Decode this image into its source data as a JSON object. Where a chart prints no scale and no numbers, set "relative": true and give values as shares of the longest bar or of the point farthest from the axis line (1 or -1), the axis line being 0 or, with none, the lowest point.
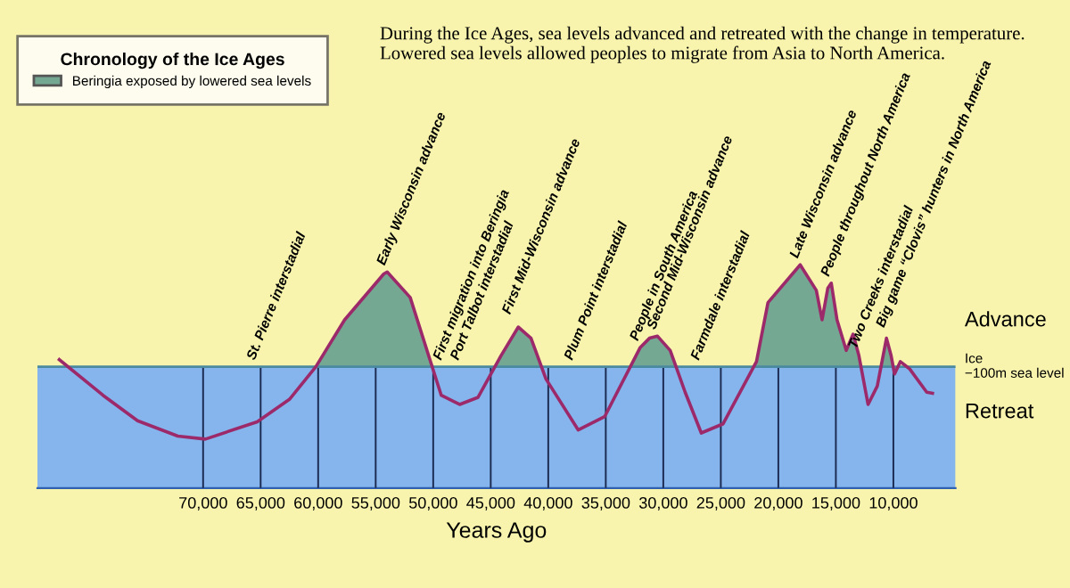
{
  "chart_data": {
    "type": "line",
    "relative": true,
    "subtitle": "During the Ice Ages, sea levels advanced and retreated with the change in temperature. Lowered sea levels allowed peoples to migrate from Asia to North America.",
    "legend_title": "Chronology of the Ice Ages",
    "legend": "top left",
    "xlabel": "Years Ago",
    "x": [
      82500,
      78700,
      75700,
      72200,
      69800,
      65300,
      62500,
      60200,
      57700,
      54300,
      54000,
      52000,
      50400,
      49300,
      47700,
      46100,
      44100,
      42600,
      41500,
      40200,
      37400,
      35100,
      32000,
      31200,
      30500,
      29400,
      28100,
      26700,
      24800,
      21900,
      20900,
      18100,
      16700,
      16200,
      15700,
      15400,
      14900,
      14100,
      13500,
      13000,
      12200,
      11400,
      10600,
      10200,
      9900,
      9400,
      8600,
      7100,
      6600
    ],
    "series": [
      {
        "type": "area",
        "name": "Beringia exposed by lowered sea levels",
        "color": "#74a893",
        "x": [
          60200,
          57700,
          54300,
          54000,
          52000,
          50400,
          50100,
          47000,
          44600,
          44100,
          42600,
          41500,
          40600,
          36000,
          32900,
          32000,
          31200,
          30500,
          29400,
          28900,
          25000,
          22100,
          21900,
          20900,
          18100,
          16700,
          16200,
          15700,
          15400,
          14900,
          14100,
          13500,
          13000,
          12800,
          12000,
          11100,
          10600,
          10200,
          10000
        ],
        "values": [
          0,
          0.46,
          0.91,
          0.93,
          0.68,
          0.11,
          0,
          null,
          0,
          0.11,
          0.39,
          0.28,
          0,
          null,
          0,
          0.19,
          0.28,
          0.3,
          0.16,
          0,
          null,
          0,
          0.05,
          0.63,
          1.0,
          0.75,
          0.46,
          0.77,
          0.82,
          0.46,
          0.16,
          0.32,
          0.11,
          0,
          null,
          0,
          0.28,
          0.11,
          0
        ]
      },
      {
        "color": "#9c2a6a",
        "values": [
          0.07,
          -0.28,
          -0.53,
          -0.68,
          -0.71,
          -0.54,
          -0.32,
          0,
          0.46,
          0.91,
          0.93,
          0.68,
          0.11,
          -0.28,
          -0.37,
          -0.3,
          0.11,
          0.39,
          0.28,
          -0.12,
          -0.62,
          -0.49,
          0.19,
          0.28,
          0.3,
          0.16,
          -0.25,
          -0.65,
          -0.56,
          0.05,
          0.63,
          1.0,
          0.75,
          0.46,
          0.77,
          0.82,
          0.46,
          0.16,
          0.32,
          0.11,
          -0.37,
          -0.19,
          0.28,
          0.11,
          -0.07,
          0.05,
          -0.02,
          -0.25,
          -0.26
        ]
      }
    ],
    "xlim": [
      84400,
      4600
    ],
    "xticks": [
      {
        "value": 70000,
        "label": "70,000"
      },
      {
        "value": 65000,
        "label": "65,000"
      },
      {
        "value": 60000,
        "label": "60,000"
      },
      {
        "value": 55000,
        "label": "55,000"
      },
      {
        "value": 50000,
        "label": "50,000"
      },
      {
        "value": 45000,
        "label": "45,000"
      },
      {
        "value": 40000,
        "label": "40,000"
      },
      {
        "value": 35000,
        "label": "35,000"
      },
      {
        "value": 30000,
        "label": "30,000"
      },
      {
        "value": 25000,
        "label": "25,000"
      },
      {
        "value": 20000,
        "label": "20,000"
      },
      {
        "value": 15000,
        "label": "15,000"
      },
      {
        "value": 10000,
        "label": "10,000"
      }
    ],
    "grid": "x",
    "tick_labels": "x",
    "bands": [
      {
        "axis": "y",
        "from": -1.19,
        "to": 0,
        "color": "#86b4ec"
      }
    ],
    "ref_lines": [
      {
        "axis": "y",
        "value": 0,
        "label": "Ice\n−100m sea level",
        "color": "#4a8aa0"
      }
    ],
    "annotations": [
      "Advance",
      "Retreat",
      {
        "text": "St. Pierre interstadial",
        "x": 65300,
        "y": 0
      },
      {
        "text": "Early Wisconsin advance",
        "x": 54000,
        "y": 0.93
      },
      {
        "text": "First migration into Beringia",
        "x": 49100,
        "y": 0
      },
      {
        "text": "Port Talbot interstadial",
        "x": 47600,
        "y": 0
      },
      {
        "text": "First Mid-Wisconsin advance",
        "x": 43100,
        "y": 0.45
      },
      {
        "text": "Plum Point interstadial",
        "x": 37700,
        "y": 0
      },
      {
        "text": "People in South America",
        "x": 32000,
        "y": 0.19
      },
      {
        "text": "Second Mid-Wisconsin advance",
        "x": 30500,
        "y": 0.3
      },
      {
        "text": "Farmdale interstadial",
        "x": 26700,
        "y": 0
      },
      {
        "text": "Late Wisconsin advance",
        "x": 18100,
        "y": 1.0
      },
      {
        "text": "People throughout North America",
        "x": 15400,
        "y": 0.82
      },
      {
        "text": "Two Creeks interstadial",
        "x": 13000,
        "y": 0.11
      },
      {
        "text": "Big game “Clovis” hunters in North America",
        "x": 10600,
        "y": 0.32
      }
    ]
  }
}
